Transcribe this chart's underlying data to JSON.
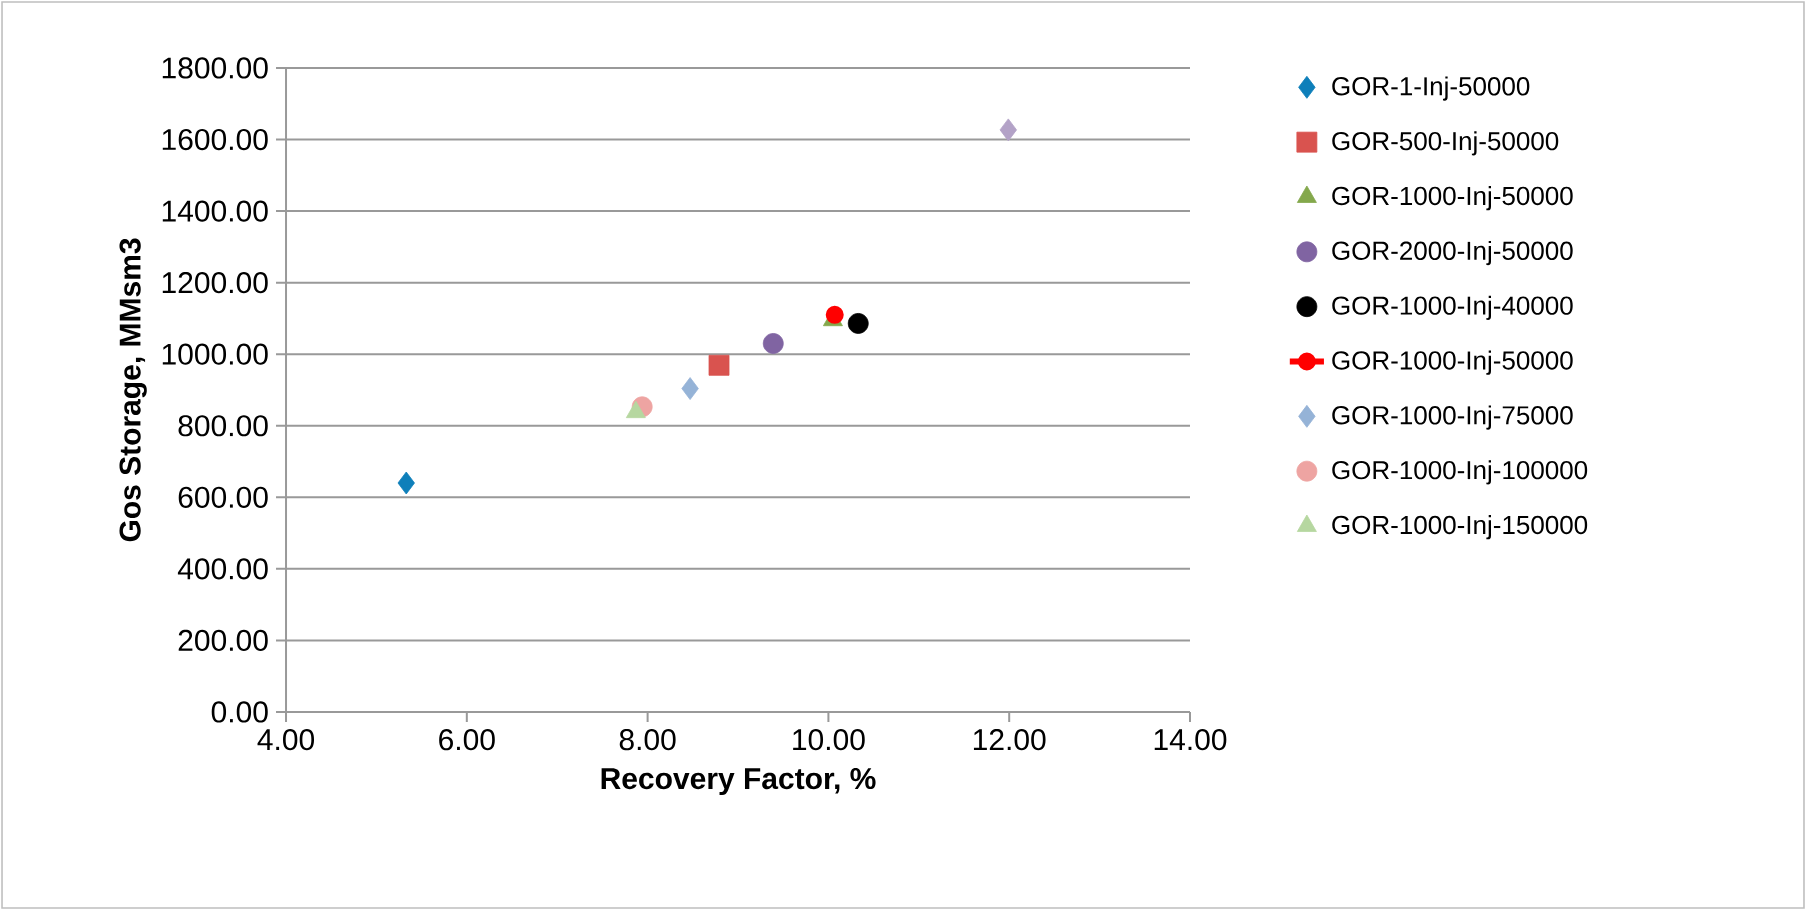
{
  "chart_data": {
    "type": "scatter",
    "xlabel": "Recovery Factor, %",
    "ylabel": "Gos Storage, MMsm3",
    "xlim": [
      4,
      14
    ],
    "ylim": [
      0,
      1800
    ],
    "xticks": [
      {
        "value": 4,
        "label": "4.00"
      },
      {
        "value": 6,
        "label": "6.00"
      },
      {
        "value": 8,
        "label": "8.00"
      },
      {
        "value": 10,
        "label": "10.00"
      },
      {
        "value": 12,
        "label": "12.00"
      },
      {
        "value": 14,
        "label": "14.00"
      }
    ],
    "yticks": [
      {
        "value": 0,
        "label": "0.00"
      },
      {
        "value": 200,
        "label": "200.00"
      },
      {
        "value": 400,
        "label": "400.00"
      },
      {
        "value": 600,
        "label": "600.00"
      },
      {
        "value": 800,
        "label": "800.00"
      },
      {
        "value": 1000,
        "label": "1000.00"
      },
      {
        "value": 1200,
        "label": "1200.00"
      },
      {
        "value": 1400,
        "label": "1400.00"
      },
      {
        "value": 1600,
        "label": "1600.00"
      },
      {
        "value": 1800,
        "label": "1800.00"
      }
    ],
    "grid": "y",
    "legend": "right",
    "series": [
      {
        "name": "GOR-1-Inj-50000",
        "color": "#0e7fba",
        "marker": "diamond",
        "x": [
          5.33
        ],
        "values": [
          640
        ]
      },
      {
        "name": "GOR-500-Inj-50000",
        "color": "#d9534f",
        "marker": "square",
        "x": [
          8.79
        ],
        "values": [
          969
        ]
      },
      {
        "name": "GOR-1000-Inj-50000",
        "color": "#84a84c",
        "marker": "triangle",
        "x": [
          10.05
        ],
        "values": [
          1095
        ]
      },
      {
        "name": "GOR-2000-Inj-50000",
        "color": "#8064a2",
        "marker": "circle",
        "x": [
          9.39
        ],
        "values": [
          1030
        ]
      },
      {
        "name": "GOR-1000-Inj-40000",
        "color": "#000000",
        "marker": "circle",
        "x": [
          10.33
        ],
        "values": [
          1086
        ]
      },
      {
        "name": "GOR-1000-Inj-50000",
        "type": "line",
        "line_style": "solid",
        "color": "#ff0000",
        "marker": "circle",
        "x": [
          10.07
        ],
        "values": [
          1110
        ]
      },
      {
        "name": "GOR-1000-Inj-75000",
        "color": "#95b3d7",
        "marker": "diamond",
        "x": [
          8.47
        ],
        "values": [
          904
        ]
      },
      {
        "name": "GOR-1000-Inj-100000",
        "color": "#eea4a2",
        "marker": "circle",
        "x": [
          7.94
        ],
        "values": [
          853
        ]
      },
      {
        "name": "GOR-1000-Inj-150000",
        "color": "#b6d7a0",
        "marker": "triangle",
        "x": [
          7.87
        ],
        "values": [
          838
        ]
      },
      {
        "color": "#b3a2c7",
        "marker": "diamond",
        "x": [
          11.99
        ],
        "values": [
          1627
        ]
      }
    ]
  }
}
